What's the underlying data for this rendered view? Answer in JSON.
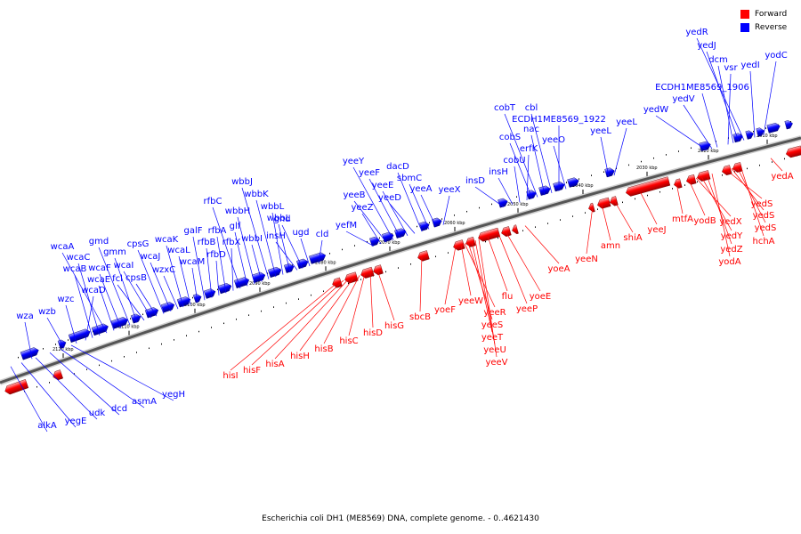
{
  "legend": {
    "forward_label": "Forward",
    "reverse_label": "Reverse",
    "forward_color": "#ff0000",
    "reverse_color": "#0000ff"
  },
  "caption": "Escherichia coli DH1 (ME8569) DNA, complete genome. - 0..4621430",
  "axis": {
    "backbone_color": "#555555",
    "ticks": [
      "2010 kbp",
      "2020 kbp",
      "2030 kbp",
      "2040 kbp",
      "2050 kbp",
      "2060 kbp",
      "2070 kbp",
      "2080 kbp",
      "2090 kbp",
      "2100 kbp",
      "2110 kbp",
      "2120 kbp"
    ]
  },
  "reverse_labels": [
    "wza",
    "wzb",
    "wzc",
    "wcaD",
    "wcaB",
    "wcaC",
    "wcaA",
    "wcaE",
    "wcaF",
    "gmd",
    "gmm",
    "fcl",
    "wcaI",
    "cpsB",
    "cpsG",
    "wcaJ",
    "wzxC",
    "wcaK",
    "wcaL",
    "wcaM",
    "galF",
    "rfbB",
    "rfbD",
    "rfbA",
    "rfbX",
    "rfbC",
    "glf",
    "wbbH",
    "wbbI",
    "wbbJ",
    "wbbK",
    "wbbL",
    "wbbL",
    "insH",
    "gnd",
    "ugd",
    "cld",
    "yefM",
    "yeeZ",
    "yeeB",
    "yeeY",
    "yeeF",
    "yeeE",
    "yeeD",
    "dacD",
    "sbmC",
    "yeeA",
    "yeeX",
    "insD",
    "insH",
    "cobU",
    "erfK",
    "cobS",
    "cobT",
    "nac",
    "cbl",
    "ECDH1ME8569_1922",
    "yeeO",
    "yeeL",
    "yeeL",
    "yedW",
    "yedV",
    "ECDH1ME8569_1906",
    "vsr",
    "dcm",
    "yedJ",
    "yedR",
    "yedI",
    "yodC",
    "alkA",
    "yegE",
    "udk",
    "dcd",
    "asmA",
    "yegH"
  ],
  "forward_labels": [
    "hisI",
    "hisF",
    "hisA",
    "hisH",
    "hisB",
    "hisC",
    "hisD",
    "hisG",
    "sbcB",
    "yoeF",
    "yeeW",
    "yeeR",
    "yeeS",
    "yeeT",
    "yeeU",
    "yeeV",
    "flu",
    "yeeP",
    "yoeE",
    "yoeA",
    "yeeN",
    "amn",
    "shiA",
    "yeeJ",
    "mtfA",
    "yodB",
    "yedX",
    "yedY",
    "yedZ",
    "yodA",
    "yedS",
    "yedS",
    "yedS",
    "hchA",
    "yedA"
  ]
}
